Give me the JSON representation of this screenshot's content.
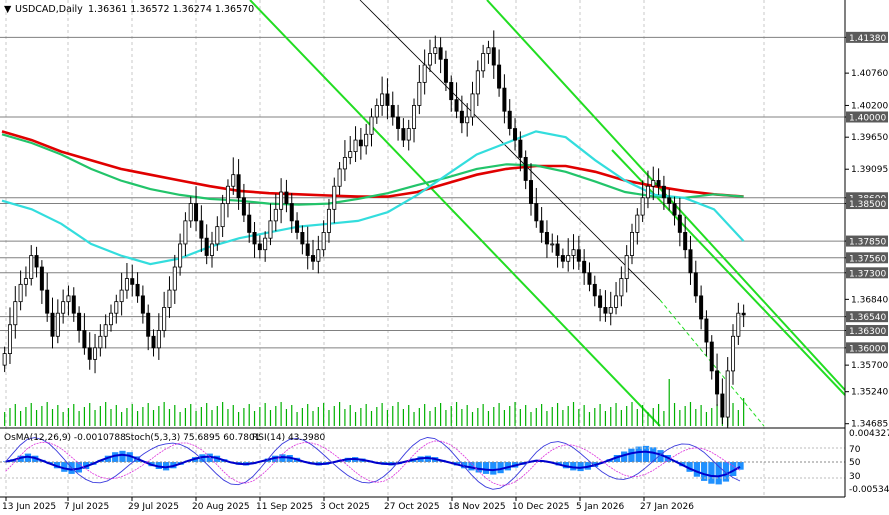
{
  "header": {
    "symbol": "USDCAD,Daily",
    "ohlc": "1.36361 1.36572 1.36274 1.36570"
  },
  "indicator_header": {
    "osma": "OsMA(12,26,9) -0.0010788",
    "stoch": "Stoch(5,3,3) 75.6895 60.7801",
    "rsi": "RSI(14) 43.3980"
  },
  "colors": {
    "background": "#ffffff",
    "candle": "#000000",
    "volume": "#00b000",
    "ma_red": "#e00000",
    "ma_green": "#22c46a",
    "ma_cyan": "#33dddd",
    "channel": "#22dd22",
    "level_line": "#808080",
    "label_bg": "#5a5a5a",
    "osma_bar": "#1e90ff",
    "macd_line": "#0000cc",
    "stoch_main": "#3b3bdd",
    "stoch_signal": "#dd33dd"
  },
  "chart_data": {
    "type": "candlestick",
    "price_axis": [
      "1.41380",
      "1.40760",
      "1.40200",
      "1.40000",
      "1.39650",
      "1.39095",
      "1.38600",
      "1.38500",
      "1.37850",
      "1.37560",
      "1.37300",
      "1.36840",
      "1.36540",
      "1.36300",
      "1.36000",
      "1.35700",
      "1.35240",
      "1.34685"
    ],
    "price_range": [
      1.3468,
      1.4175
    ],
    "level_labels": [
      "1.41380",
      "1.40000",
      "1.38600",
      "1.38500",
      "1.37850",
      "1.37560",
      "1.37300",
      "1.36540",
      "1.36300",
      "1.36000"
    ],
    "date_labels": [
      "13 Jun 2025",
      "7 Jul 2025",
      "29 Jul 2025",
      "20 Aug 2025",
      "11 Sep 2025",
      "3 Oct 2025",
      "27 Oct 2025",
      "18 Nov 2025",
      "10 Dec 2025",
      "5 Jan 2026",
      "27 Jan 2026"
    ],
    "close": [
      1.359,
      1.364,
      1.368,
      1.371,
      1.372,
      1.376,
      1.374,
      1.37,
      1.366,
      1.362,
      1.366,
      1.368,
      1.369,
      1.366,
      1.363,
      1.36,
      1.358,
      1.36,
      1.362,
      1.364,
      1.366,
      1.368,
      1.37,
      1.372,
      1.371,
      1.369,
      1.366,
      1.362,
      1.36,
      1.363,
      1.367,
      1.37,
      1.374,
      1.378,
      1.382,
      1.385,
      1.382,
      1.379,
      1.376,
      1.378,
      1.381,
      1.385,
      1.388,
      1.39,
      1.386,
      1.383,
      1.38,
      1.378,
      1.377,
      1.379,
      1.382,
      1.384,
      1.387,
      1.385,
      1.382,
      1.38,
      1.378,
      1.376,
      1.375,
      1.377,
      1.38,
      1.384,
      1.388,
      1.391,
      1.393,
      1.394,
      1.396,
      1.395,
      1.397,
      1.4,
      1.402,
      1.404,
      1.402,
      1.4,
      1.398,
      1.396,
      1.398,
      1.402,
      1.406,
      1.409,
      1.411,
      1.412,
      1.41,
      1.406,
      1.403,
      1.401,
      1.399,
      1.4,
      1.404,
      1.408,
      1.411,
      1.412,
      1.409,
      1.405,
      1.401,
      1.398,
      1.396,
      1.393,
      1.389,
      1.385,
      1.382,
      1.38,
      1.378,
      1.378,
      1.376,
      1.375,
      1.376,
      1.377,
      1.375,
      1.373,
      1.371,
      1.369,
      1.367,
      1.366,
      1.367,
      1.369,
      1.372,
      1.376,
      1.38,
      1.383,
      1.386,
      1.388,
      1.389,
      1.388,
      1.386,
      1.385,
      1.383,
      1.38,
      1.377,
      1.373,
      1.369,
      1.365,
      1.361,
      1.356,
      1.352,
      1.348,
      1.356,
      1.362,
      1.366,
      1.3657
    ],
    "moving_averages": [
      {
        "color": "#e00000",
        "values": [
          1.3975,
          1.396,
          1.394,
          1.3925,
          1.391,
          1.39,
          1.389,
          1.388,
          1.3872,
          1.3868,
          1.3866,
          1.3864,
          1.3862,
          1.3862,
          1.387,
          1.3885,
          1.39,
          1.391,
          1.3915,
          1.3915,
          1.3905,
          1.389,
          1.388,
          1.3872,
          1.3866,
          1.3862
        ]
      },
      {
        "color": "#22c46a",
        "values": [
          1.397,
          1.3955,
          1.3935,
          1.391,
          1.389,
          1.3875,
          1.3865,
          1.3858,
          1.3855,
          1.385,
          1.3848,
          1.385,
          1.3858,
          1.3868,
          1.3882,
          1.3895,
          1.391,
          1.3918,
          1.3916,
          1.3905,
          1.3888,
          1.387,
          1.3862,
          1.386,
          1.3866,
          1.3862
        ]
      },
      {
        "color": "#33dddd",
        "values": [
          1.3855,
          1.384,
          1.3815,
          1.378,
          1.376,
          1.3745,
          1.3755,
          1.3775,
          1.379,
          1.38,
          1.381,
          1.3815,
          1.382,
          1.3835,
          1.3865,
          1.39,
          1.3935,
          1.3955,
          1.3975,
          1.3965,
          1.3925,
          1.389,
          1.3865,
          1.386,
          1.384,
          1.3785
        ]
      }
    ],
    "indicator_axis": [
      "0.004327",
      "70",
      "50",
      "30",
      "-0.005342"
    ],
    "osma": [
      0.1,
      0.4,
      0.9,
      1.2,
      0.9,
      0.3,
      -0.3,
      -0.9,
      -1.4,
      -1.7,
      -1.5,
      -1.0,
      -0.4,
      0.3,
      0.9,
      1.4,
      1.6,
      1.4,
      0.8,
      0.1,
      -0.6,
      -1.0,
      -1.2,
      -0.9,
      -0.4,
      0.2,
      0.7,
      1.1,
      1.2,
      0.9,
      0.4,
      -0.1,
      -0.4,
      -0.5,
      -0.3,
      0.1,
      0.5,
      0.9,
      1.1,
      1.0,
      0.6,
      0.1,
      -0.3,
      -0.5,
      -0.4,
      -0.1,
      0.3,
      0.6,
      0.7,
      0.5,
      0.2,
      -0.2,
      -0.4,
      -0.5,
      -0.3,
      0.1,
      0.5,
      0.8,
      0.9,
      0.7,
      0.3,
      -0.1,
      -0.5,
      -0.9,
      -1.2,
      -1.5,
      -1.7,
      -1.8,
      -1.6,
      -1.2,
      -0.8,
      -0.4,
      0.0,
      0.3,
      0.2,
      -0.1,
      -0.5,
      -0.9,
      -1.2,
      -1.3,
      -1.1,
      -0.7,
      -0.2,
      0.4,
      1.0,
      1.5,
      1.9,
      2.2,
      2.3,
      2.1,
      1.7,
      1.0,
      0.2,
      -0.6,
      -1.4,
      -2.1,
      -2.7,
      -3.1,
      -3.2,
      -2.8,
      -2.0,
      -1.1
    ]
  }
}
